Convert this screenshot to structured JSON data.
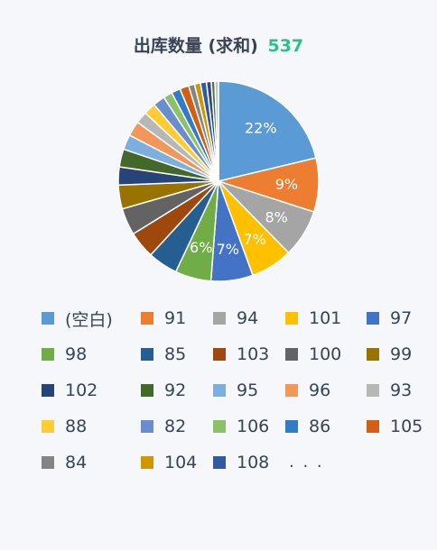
{
  "header": {
    "title": "出库数量 (求和)",
    "total": "537"
  },
  "chart_data": {
    "type": "pie",
    "title": "出库数量 (求和)",
    "total": 537,
    "slices": [
      {
        "label": "(空白)",
        "value": 22,
        "color": "#5b9bd5",
        "text": "22%"
      },
      {
        "label": "91",
        "value": 9,
        "color": "#ed7d31",
        "text": "9%"
      },
      {
        "label": "94",
        "value": 8,
        "color": "#a5a5a5",
        "text": "8%"
      },
      {
        "label": "101",
        "value": 7,
        "color": "#ffc000",
        "text": "7%"
      },
      {
        "label": "97",
        "value": 7,
        "color": "#4472c4",
        "text": "7%"
      },
      {
        "label": "98",
        "value": 6,
        "color": "#70ad47",
        "text": "6%"
      },
      {
        "label": "85",
        "value": 5,
        "color": "#255e91",
        "text": ""
      },
      {
        "label": "103",
        "value": 4.5,
        "color": "#9e480e",
        "text": ""
      },
      {
        "label": "100",
        "value": 4.5,
        "color": "#636363",
        "text": ""
      },
      {
        "label": "99",
        "value": 4,
        "color": "#997300",
        "text": ""
      },
      {
        "label": "102",
        "value": 3,
        "color": "#264478",
        "text": ""
      },
      {
        "label": "92",
        "value": 3,
        "color": "#43682b",
        "text": ""
      },
      {
        "label": "95",
        "value": 2.5,
        "color": "#7cafdd",
        "text": ""
      },
      {
        "label": "96",
        "value": 2.5,
        "color": "#f1975a",
        "text": ""
      },
      {
        "label": "93",
        "value": 2,
        "color": "#b7b7b7",
        "text": ""
      },
      {
        "label": "88",
        "value": 2,
        "color": "#ffcd33",
        "text": ""
      },
      {
        "label": "82",
        "value": 2,
        "color": "#698ed0",
        "text": ""
      },
      {
        "label": "106",
        "value": 1.5,
        "color": "#8cc168",
        "text": ""
      },
      {
        "label": "86",
        "value": 1.5,
        "color": "#327dc2",
        "text": ""
      },
      {
        "label": "105",
        "value": 1.5,
        "color": "#d26012",
        "text": ""
      },
      {
        "label": "84",
        "value": 1,
        "color": "#848484",
        "text": ""
      },
      {
        "label": "104",
        "value": 1,
        "color": "#cc9a00",
        "text": ""
      },
      {
        "label": "108",
        "value": 1,
        "color": "#335aa1",
        "text": ""
      },
      {
        "label": "",
        "value": 0.8,
        "color": "#2e4a7d",
        "text": ""
      },
      {
        "label": "",
        "value": 0.6,
        "color": "#5b6e3c",
        "text": ""
      },
      {
        "label": "",
        "value": 0.6,
        "color": "#a9c8e8",
        "text": ""
      }
    ]
  },
  "legend": {
    "more": ". . ."
  }
}
